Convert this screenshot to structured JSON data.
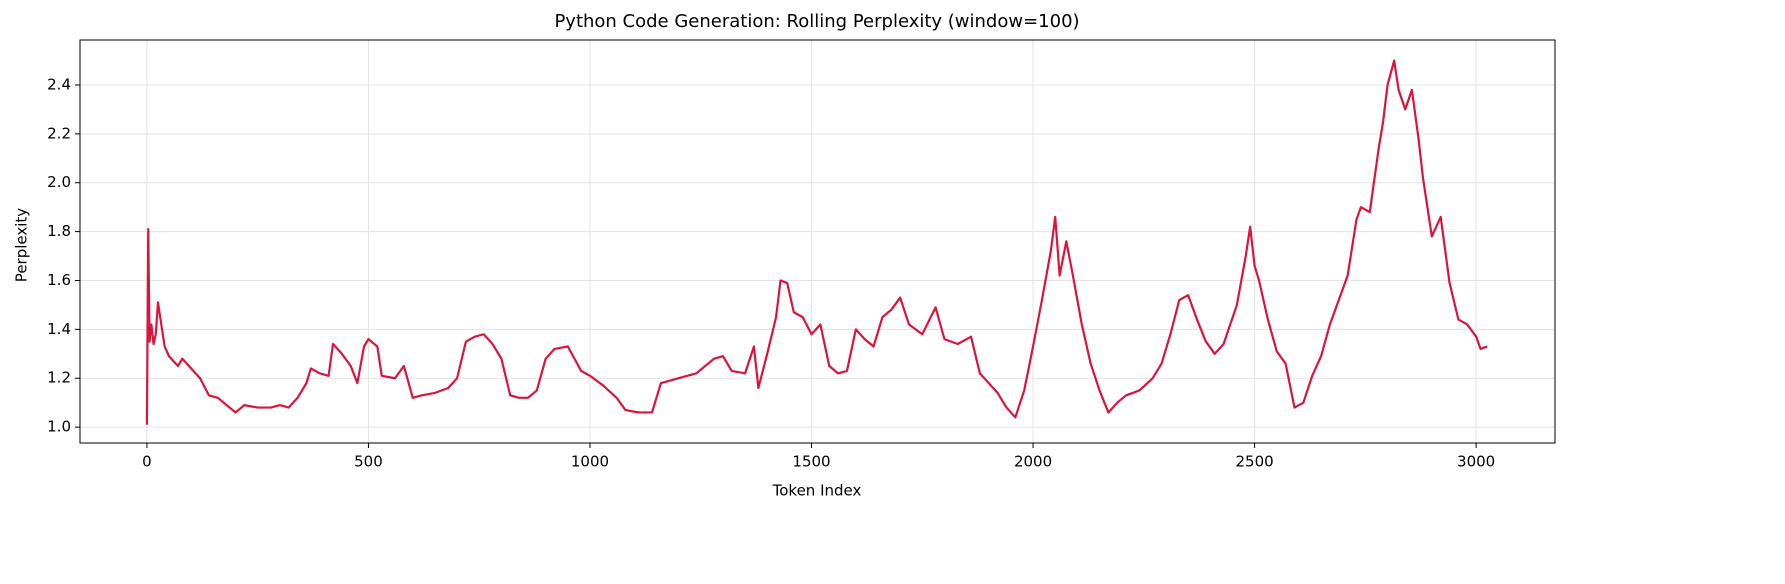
{
  "chart_data": {
    "type": "line",
    "title": "Python Code Generation: Rolling Perplexity (window=100)",
    "xlabel": "Token Index",
    "ylabel": "Perplexity",
    "xlim": [
      -151,
      3178
    ],
    "ylim": [
      0.935,
      2.584
    ],
    "xticks": [
      0,
      500,
      1000,
      1500,
      2000,
      2500,
      3000
    ],
    "yticks": [
      {
        "value": 1,
        "label": "1.0"
      },
      1.2,
      1.4,
      1.6,
      1.8,
      {
        "value": 2,
        "label": "2.0"
      },
      2.2,
      2.4
    ],
    "grid": true,
    "series": [
      {
        "color": "#dc143c",
        "x": [
          0,
          3,
          6,
          10,
          15,
          20,
          25,
          30,
          40,
          50,
          60,
          70,
          80,
          100,
          120,
          140,
          160,
          180,
          200,
          220,
          250,
          280,
          300,
          320,
          340,
          360,
          370,
          390,
          410,
          420,
          440,
          460,
          475,
          490,
          500,
          520,
          530,
          560,
          580,
          600,
          620,
          650,
          680,
          700,
          720,
          740,
          760,
          780,
          800,
          820,
          840,
          860,
          880,
          900,
          920,
          950,
          980,
          1000,
          1030,
          1060,
          1080,
          1110,
          1140,
          1160,
          1200,
          1240,
          1260,
          1280,
          1300,
          1320,
          1350,
          1370,
          1380,
          1400,
          1420,
          1430,
          1445,
          1460,
          1480,
          1500,
          1520,
          1540,
          1560,
          1580,
          1600,
          1620,
          1640,
          1660,
          1680,
          1700,
          1720,
          1750,
          1780,
          1800,
          1830,
          1860,
          1880,
          1900,
          1920,
          1940,
          1960,
          1980,
          2000,
          2020,
          2040,
          2050,
          2060,
          2075,
          2090,
          2110,
          2130,
          2150,
          2170,
          2190,
          2210,
          2240,
          2270,
          2290,
          2310,
          2330,
          2350,
          2370,
          2390,
          2410,
          2430,
          2460,
          2480,
          2490,
          2500,
          2510,
          2530,
          2550,
          2570,
          2590,
          2610,
          2630,
          2650,
          2670,
          2690,
          2710,
          2730,
          2740,
          2760,
          2780,
          2790,
          2800,
          2815,
          2825,
          2840,
          2855,
          2870,
          2880,
          2900,
          2910,
          2920,
          2940,
          2960,
          2980,
          3000,
          3010,
          3025
        ],
        "values": [
          1.01,
          1.81,
          1.35,
          1.42,
          1.34,
          1.38,
          1.51,
          1.45,
          1.33,
          1.29,
          1.27,
          1.25,
          1.28,
          1.24,
          1.2,
          1.13,
          1.12,
          1.09,
          1.06,
          1.09,
          1.08,
          1.08,
          1.09,
          1.08,
          1.12,
          1.18,
          1.24,
          1.22,
          1.21,
          1.34,
          1.3,
          1.25,
          1.18,
          1.33,
          1.36,
          1.33,
          1.21,
          1.2,
          1.25,
          1.12,
          1.13,
          1.14,
          1.16,
          1.2,
          1.35,
          1.37,
          1.38,
          1.34,
          1.28,
          1.13,
          1.12,
          1.12,
          1.15,
          1.28,
          1.32,
          1.33,
          1.23,
          1.21,
          1.17,
          1.12,
          1.07,
          1.06,
          1.06,
          1.18,
          1.2,
          1.22,
          1.25,
          1.28,
          1.29,
          1.23,
          1.22,
          1.33,
          1.16,
          1.3,
          1.45,
          1.6,
          1.59,
          1.47,
          1.45,
          1.38,
          1.42,
          1.25,
          1.22,
          1.23,
          1.4,
          1.36,
          1.33,
          1.45,
          1.48,
          1.53,
          1.42,
          1.38,
          1.49,
          1.36,
          1.34,
          1.37,
          1.22,
          1.18,
          1.14,
          1.08,
          1.04,
          1.15,
          1.33,
          1.52,
          1.72,
          1.86,
          1.62,
          1.76,
          1.62,
          1.42,
          1.26,
          1.15,
          1.06,
          1.1,
          1.13,
          1.15,
          1.2,
          1.26,
          1.38,
          1.52,
          1.54,
          1.44,
          1.35,
          1.3,
          1.34,
          1.5,
          1.7,
          1.82,
          1.66,
          1.6,
          1.44,
          1.31,
          1.26,
          1.08,
          1.1,
          1.21,
          1.29,
          1.42,
          1.52,
          1.62,
          1.85,
          1.9,
          1.88,
          2.14,
          2.25,
          2.4,
          2.5,
          2.38,
          2.3,
          2.38,
          2.18,
          2.02,
          1.78,
          1.82,
          1.86,
          1.59,
          1.44,
          1.42,
          1.37,
          1.32,
          1.33
        ]
      }
    ]
  }
}
